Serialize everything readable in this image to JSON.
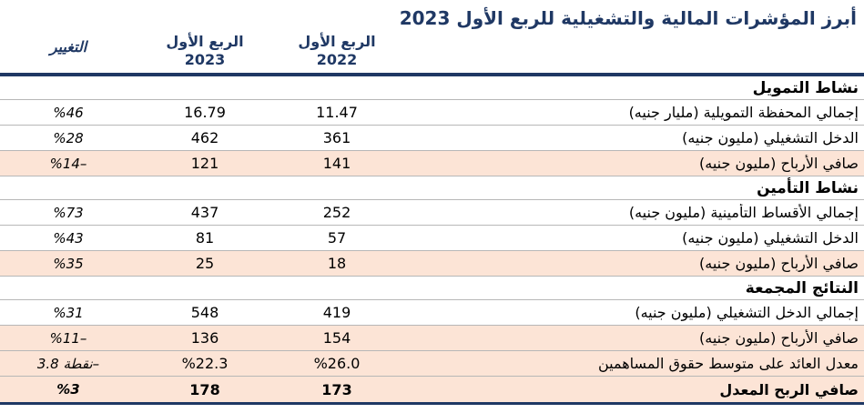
{
  "title": "أبرز المؤشرات المالية والتشغيلية للربع الأول 2023",
  "colors": {
    "navy": "#1F3864",
    "highlight_row": "#FCE4D6",
    "row_line": "#B7B7B7"
  },
  "columns": {
    "q1_2022": {
      "line1": "الربع الأول",
      "line2": "2022"
    },
    "q1_2023": {
      "line1": "الربع الأول",
      "line2": "2023"
    },
    "change": "التغيير"
  },
  "sections": [
    {
      "header": "نشاط التمويل",
      "rows": [
        {
          "label": "إجمالي المحفظة التمويلية (مليار جنيه)",
          "q1_2022": "11.47",
          "q1_2023": "16.79",
          "change": "%46",
          "highlight": false,
          "bold": false
        },
        {
          "label": "الدخل التشغيلي (مليون جنيه)",
          "q1_2022": "361",
          "q1_2023": "462",
          "change": "%28",
          "highlight": false,
          "bold": false
        },
        {
          "label": "صافي الأرباح (مليون جنيه)",
          "q1_2022": "141",
          "q1_2023": "121",
          "change": "%14–",
          "highlight": true,
          "bold": false
        }
      ]
    },
    {
      "header": "نشاط التأمين",
      "rows": [
        {
          "label": "إجمالي الأقساط التأمينية (مليون جنيه)",
          "q1_2022": "252",
          "q1_2023": "437",
          "change": "%73",
          "highlight": false,
          "bold": false
        },
        {
          "label": "الدخل التشغيلي (مليون جنيه)",
          "q1_2022": "57",
          "q1_2023": "81",
          "change": "%43",
          "highlight": false,
          "bold": false
        },
        {
          "label": "صافي الأرباح (مليون جنيه)",
          "q1_2022": "18",
          "q1_2023": "25",
          "change": "%35",
          "highlight": true,
          "bold": false
        }
      ]
    },
    {
      "header": "النتائج المجمعة",
      "rows": [
        {
          "label": "إجمالي الدخل التشغيلي (مليون جنيه)",
          "q1_2022": "419",
          "q1_2023": "548",
          "change": "%31",
          "highlight": false,
          "bold": false
        },
        {
          "label": "صافي الأرباح (مليون جنيه)",
          "q1_2022": "154",
          "q1_2023": "136",
          "change": "%11–",
          "highlight": true,
          "bold": false
        },
        {
          "label": "معدل العائد على متوسط حقوق المساهمين",
          "q1_2022": "%26.0",
          "q1_2023": "%22.3",
          "change": "نقطة 3.8–",
          "highlight": true,
          "bold": false
        },
        {
          "label": "صافي الربح المعدل",
          "q1_2022": "173",
          "q1_2023": "178",
          "change": "%3",
          "highlight": true,
          "bold": true
        }
      ]
    }
  ]
}
